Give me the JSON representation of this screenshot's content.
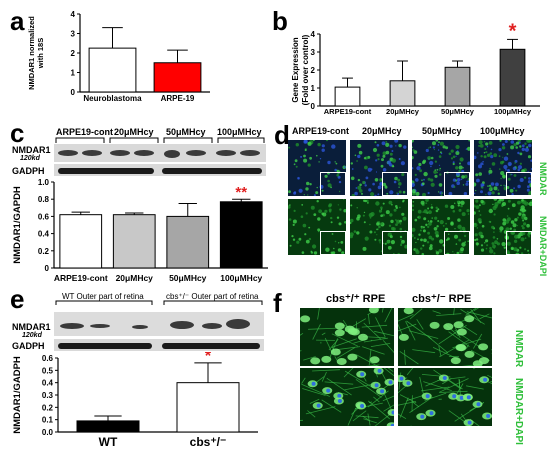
{
  "panels": {
    "a": {
      "letter": "a"
    },
    "b": {
      "letter": "b"
    },
    "c": {
      "letter": "c"
    },
    "d": {
      "letter": "d"
    },
    "e": {
      "letter": "e"
    },
    "f": {
      "letter": "f"
    }
  },
  "blot_c": {
    "group_labels": [
      "ARPE19-cont",
      "20μMHcy",
      "50μMHcy",
      "100μMHcy"
    ],
    "band1": "NMDAR1",
    "band1_size": "120kd",
    "band2": "GADPH"
  },
  "blot_e": {
    "group_labels": [
      "WT Outer part of retina",
      "cbs⁺/⁻ Outer part of retina"
    ],
    "band1": "NMDAR1",
    "band1_size": "120kd",
    "band2": "GADPH"
  },
  "micro_d": {
    "col_labels": [
      "ARPE19-cont",
      "20μMHcy",
      "50μMHcy",
      "100μMHcy"
    ],
    "row_labels": [
      "NMDAR",
      "NMDAR+DAPI"
    ],
    "colors": {
      "green": "#2fbf3a",
      "blue": "#1f3fbf"
    }
  },
  "micro_f": {
    "col_labels": [
      "cbs⁺/⁺ RPE",
      "cbs⁺/⁻ RPE"
    ],
    "row_labels": [
      "NMDAR",
      "NMDAR+DAPI"
    ]
  },
  "chart_data": [
    {
      "type": "bar",
      "panel": "a",
      "categories": [
        "Neuroblastoma",
        "ARPE-19"
      ],
      "values": [
        2.25,
        1.5
      ],
      "errors": [
        1.05,
        0.65
      ],
      "colors": [
        "#ffffff",
        "#ff0000"
      ],
      "ylabel": "NMDAR1 normalized with 18S",
      "ylim": [
        0,
        4
      ],
      "yticks": [
        0,
        1,
        2,
        3,
        4
      ]
    },
    {
      "type": "bar",
      "panel": "b",
      "categories": [
        "ARPE19-cont",
        "20μMHcy",
        "50μMHcy",
        "100μMHcy"
      ],
      "values": [
        1.05,
        1.4,
        2.15,
        3.15
      ],
      "errors": [
        0.5,
        1.1,
        0.35,
        0.55
      ],
      "colors": [
        "#ffffff",
        "#d4d4d4",
        "#a6a6a6",
        "#404040"
      ],
      "ylabel": "Gene Expression (Fold over control)",
      "ylim": [
        0,
        4
      ],
      "yticks": [
        0,
        1,
        2,
        3,
        4
      ],
      "significance": [
        "",
        "",
        "",
        "*"
      ]
    },
    {
      "type": "bar",
      "panel": "c",
      "categories": [
        "ARPE19-cont",
        "20μMHcy",
        "50μMHcy",
        "100μMHcy"
      ],
      "values": [
        0.62,
        0.62,
        0.6,
        0.77
      ],
      "errors": [
        0.03,
        0.02,
        0.15,
        0.03
      ],
      "colors": [
        "#ffffff",
        "#c8c8c8",
        "#a6a6a6",
        "#000000"
      ],
      "ylabel": "NMDAR1/GAPDH",
      "ylim": [
        0,
        1.0
      ],
      "yticks": [
        "0",
        "0.2",
        "0.4",
        "0.6",
        "0.8",
        "1.0"
      ],
      "significance": [
        "",
        "",
        "",
        "**"
      ]
    },
    {
      "type": "bar",
      "panel": "e",
      "categories": [
        "WT",
        "cbs⁺/⁻"
      ],
      "values": [
        0.09,
        0.4
      ],
      "errors": [
        0.04,
        0.16
      ],
      "colors": [
        "#000000",
        "#ffffff"
      ],
      "ylabel": "NMDAR1/GADPH",
      "ylim": [
        0,
        0.6
      ],
      "yticks": [
        "0.0",
        "0.1",
        "0.2",
        "0.3",
        "0.4",
        "0.5",
        "0.6"
      ],
      "significance": [
        "",
        "*"
      ]
    }
  ]
}
